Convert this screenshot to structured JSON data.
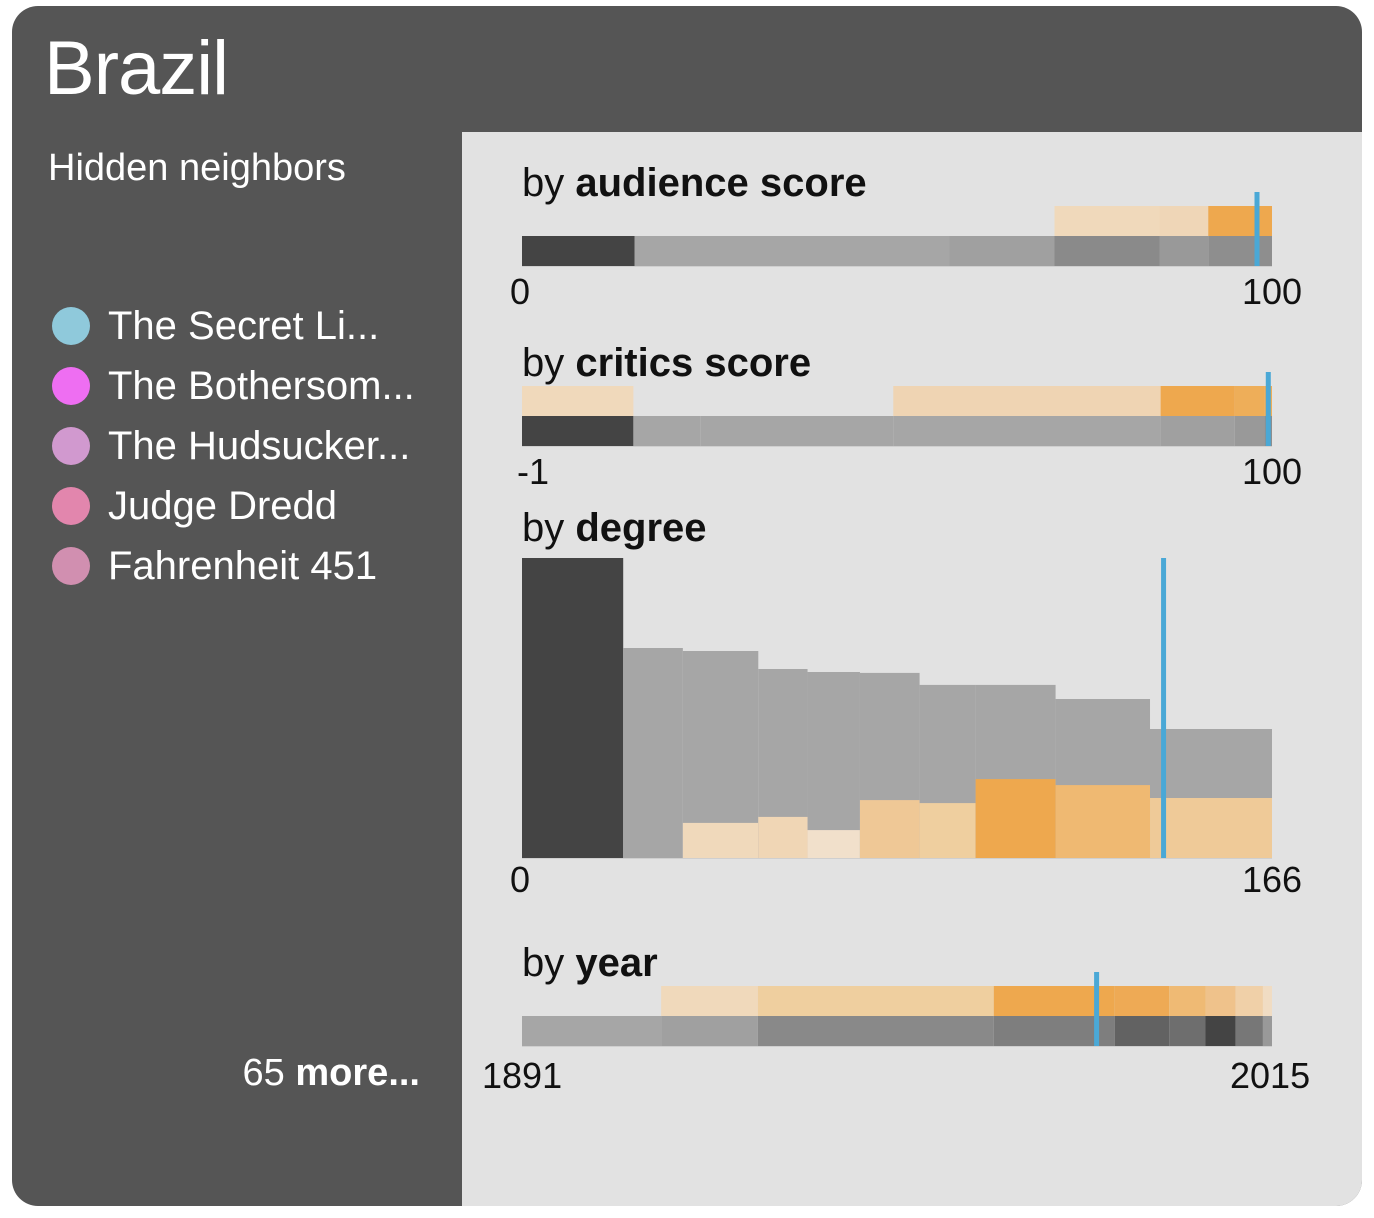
{
  "title": "Brazil",
  "sidebar": {
    "heading": "Hidden neighbors",
    "neighbors": [
      {
        "label": "The Secret Li...",
        "color": "#8fc9db"
      },
      {
        "label": "The Bothersom...",
        "color": "#ee6ef2"
      },
      {
        "label": "The Hudsucker...",
        "color": "#d199cf"
      },
      {
        "label": "Judge Dredd",
        "color": "#e286ad"
      },
      {
        "label": "Fahrenheit 451",
        "color": "#d18fb0"
      }
    ],
    "more_count": "65",
    "more_label": "more..."
  },
  "colors": {
    "base_dark": "#444444",
    "base_gray": "#a6a6a6",
    "highlight_orange": "#eea84e",
    "marker": "#4aa8d6",
    "panel_bg": "#e2e2e2"
  },
  "chart_data": [
    {
      "id": "audience",
      "type": "bar",
      "label_prefix": "by",
      "label_bold": "audience score",
      "axis_min_label": "0",
      "axis_max_label": "100",
      "domain": [
        0,
        100
      ],
      "marker": 98,
      "bins": [
        {
          "x0": 0,
          "x1": 15,
          "base": "#444444",
          "hl": null
        },
        {
          "x0": 15,
          "x1": 57,
          "base": "#a6a6a6",
          "hl": null
        },
        {
          "x0": 57,
          "x1": 71,
          "base": "#a0a0a0",
          "hl": null
        },
        {
          "x0": 71,
          "x1": 85,
          "base": "#8a8a8a",
          "hl": "#f0d9bb"
        },
        {
          "x0": 85,
          "x1": 91.5,
          "base": "#999999",
          "hl": "#efd6b7"
        },
        {
          "x0": 91.5,
          "x1": 100,
          "base": "#8e8e8e",
          "hl": "#eea84e"
        }
      ]
    },
    {
      "id": "critics",
      "type": "bar",
      "label_prefix": "by",
      "label_bold": "critics score",
      "axis_min_label": "-1",
      "axis_max_label": "100",
      "domain": [
        -1,
        100
      ],
      "marker": 99.5,
      "bins": [
        {
          "x0": -1,
          "x1": 14,
          "base": "#444444",
          "hl": "#f0d9bb"
        },
        {
          "x0": 14,
          "x1": 23,
          "base": "#a6a6a6",
          "hl": null
        },
        {
          "x0": 23,
          "x1": 49,
          "base": "#a6a6a6",
          "hl": null
        },
        {
          "x0": 49,
          "x1": 85,
          "base": "#a6a6a6",
          "hl": "#efd4b3"
        },
        {
          "x0": 85,
          "x1": 95,
          "base": "#a0a0a0",
          "hl": "#eea84e"
        },
        {
          "x0": 95,
          "x1": 99,
          "base": "#999999",
          "hl": "#eeae59"
        },
        {
          "x0": 99,
          "x1": 100,
          "base": "#8e8e8e",
          "hl": "#eeae59"
        }
      ]
    },
    {
      "id": "degree",
      "type": "bar",
      "label_prefix": "by",
      "label_bold": "degree",
      "axis_min_label": "0",
      "axis_max_label": "166",
      "domain": [
        0,
        166
      ],
      "marker": 142,
      "ymax": 100,
      "bins": [
        {
          "x0": 0,
          "x1": 22.4,
          "base": "#444444",
          "h": 100,
          "hl": null,
          "hh": 0
        },
        {
          "x0": 22.4,
          "x1": 35.6,
          "base": "#a6a6a6",
          "h": 70,
          "hl": null,
          "hh": 0
        },
        {
          "x0": 35.6,
          "x1": 52.3,
          "base": "#a6a6a6",
          "h": 69,
          "hl": "#f0d9bb",
          "hh": 11.7
        },
        {
          "x0": 52.3,
          "x1": 63.2,
          "base": "#a6a6a6",
          "h": 63,
          "hl": "#f0d6b5",
          "hh": 13.7
        },
        {
          "x0": 63.2,
          "x1": 74.8,
          "base": "#a6a6a6",
          "h": 62,
          "hl": "#f1e0cb",
          "hh": 9.3
        },
        {
          "x0": 74.8,
          "x1": 88.0,
          "base": "#a6a6a6",
          "h": 61.7,
          "hl": "#efc896",
          "hh": 19.3
        },
        {
          "x0": 88.0,
          "x1": 100.4,
          "base": "#a6a6a6",
          "h": 57.7,
          "hl": "#efcf9f",
          "hh": 18.3
        },
        {
          "x0": 100.4,
          "x1": 118.1,
          "base": "#a6a6a6",
          "h": 57.7,
          "hl": "#eea84e",
          "hh": 26.3
        },
        {
          "x0": 118.1,
          "x1": 139.0,
          "base": "#a6a6a6",
          "h": 53,
          "hl": "#efb972",
          "hh": 24.3
        },
        {
          "x0": 139.0,
          "x1": 166,
          "base": "#a6a6a6",
          "h": 43,
          "hl": "#efca98",
          "hh": 20
        }
      ]
    },
    {
      "id": "year",
      "type": "bar",
      "label_prefix": "by",
      "label_bold": "year",
      "axis_min_label": "1891",
      "axis_max_label": "2015",
      "domain": [
        1891,
        2015
      ],
      "marker": 1986,
      "bins": [
        {
          "x0": 1891,
          "x1": 1914,
          "base": "#a6a6a6",
          "hl": null
        },
        {
          "x0": 1914,
          "x1": 1930,
          "base": "#a0a0a0",
          "hl": "#f0d9bb"
        },
        {
          "x0": 1930,
          "x1": 1969,
          "base": "#898989",
          "hl": "#efcf9f"
        },
        {
          "x0": 1969,
          "x1": 1989,
          "base": "#7e7e7e",
          "hl": "#eea84e"
        },
        {
          "x0": 1989,
          "x1": 1998,
          "base": "#626262",
          "hl": "#eeaa55"
        },
        {
          "x0": 1998,
          "x1": 2004,
          "base": "#6e6e6e",
          "hl": "#efba74"
        },
        {
          "x0": 2004,
          "x1": 2009,
          "base": "#444444",
          "hl": "#efc28b"
        },
        {
          "x0": 2009,
          "x1": 2013.5,
          "base": "#777777",
          "hl": "#f0d0a8"
        },
        {
          "x0": 2013.5,
          "x1": 2015,
          "base": "#999999",
          "hl": "#f0dcc3"
        }
      ]
    }
  ]
}
